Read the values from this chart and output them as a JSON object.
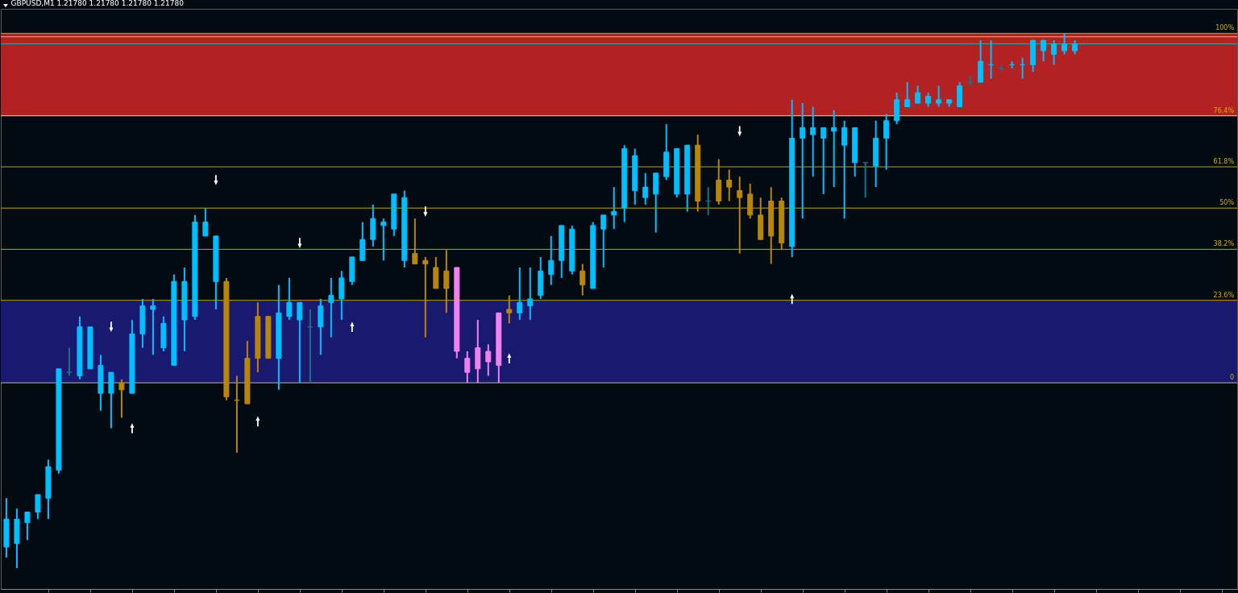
{
  "chart_data": {
    "type": "candlestick",
    "title": "GBPUSD,M1  1.21780 1.21780 1.21780 1.21780",
    "categories": [
      null,
      null,
      null,
      null,
      null,
      null,
      null,
      null,
      null,
      null,
      null,
      null,
      null,
      null,
      null,
      null,
      null,
      null,
      null,
      null,
      null,
      null,
      null,
      null,
      null,
      null,
      null,
      null,
      null,
      null,
      null,
      null,
      null,
      null,
      null,
      null,
      null,
      null,
      null,
      null,
      null,
      null,
      null,
      null,
      null,
      null,
      null,
      null,
      null,
      null,
      null,
      null,
      null,
      null,
      null,
      null,
      null,
      null,
      null,
      null,
      null,
      null,
      null,
      null,
      null,
      null,
      null,
      null,
      null,
      null,
      null,
      null,
      null,
      null,
      null,
      null,
      null,
      null,
      null,
      null,
      null,
      null,
      null,
      null,
      null,
      null,
      null,
      null,
      null,
      null,
      null,
      null,
      null,
      null,
      null,
      null,
      null,
      null,
      null,
      null,
      null,
      null,
      null
    ],
    "ohlc": [
      [
        -47,
        -33,
        -50,
        -39
      ],
      [
        -46,
        -36,
        -53,
        -39
      ],
      [
        -40,
        -37,
        -45,
        -37
      ],
      [
        -37,
        -32,
        -39,
        -32
      ],
      [
        -33,
        -22,
        -39,
        -24
      ],
      [
        -25,
        4,
        -26,
        4
      ],
      [
        3,
        10,
        2,
        3
      ],
      [
        2,
        19,
        1,
        16
      ],
      [
        4,
        16,
        4,
        16
      ],
      [
        -3,
        8,
        -8,
        5
      ],
      [
        -3,
        3,
        -13,
        3
      ],
      [
        0,
        1,
        -10,
        -2
      ],
      [
        -3,
        18,
        -3,
        14
      ],
      [
        14,
        24,
        10,
        22
      ],
      [
        21,
        24,
        8,
        22
      ],
      [
        10,
        19,
        9,
        17
      ],
      [
        5,
        31,
        5,
        29
      ],
      [
        18,
        33,
        9,
        29
      ],
      [
        19,
        48,
        18,
        46
      ],
      [
        42,
        50,
        42,
        46
      ],
      [
        29,
        42,
        21,
        42
      ],
      [
        29,
        30,
        -5,
        -4
      ],
      [
        -5,
        2,
        -20,
        -5
      ],
      [
        7,
        12,
        -6,
        -6
      ],
      [
        19,
        23,
        3,
        7
      ],
      [
        19,
        19,
        7,
        7
      ],
      [
        7,
        28,
        -2,
        20
      ],
      [
        19,
        30,
        18,
        23
      ],
      [
        18,
        23,
        0,
        23
      ],
      [
        16,
        21,
        0,
        16
      ],
      [
        16,
        24,
        8,
        22
      ],
      [
        23,
        30,
        13,
        25
      ],
      [
        24,
        32,
        18,
        30
      ],
      [
        29,
        36,
        28,
        36
      ],
      [
        35,
        46,
        35,
        41
      ],
      [
        41,
        51,
        39,
        47
      ],
      [
        45,
        47,
        35,
        46
      ],
      [
        44,
        54,
        42,
        54
      ],
      [
        35,
        55,
        33,
        53
      ],
      [
        37,
        47,
        34,
        34
      ],
      [
        35,
        36,
        13,
        34
      ],
      [
        33,
        36,
        27,
        27
      ],
      [
        32,
        38,
        20,
        27
      ],
      [
        33,
        33,
        7,
        9
      ],
      [
        7,
        9,
        0,
        3
      ],
      [
        10,
        18,
        0,
        4
      ],
      [
        9,
        11,
        2,
        6
      ],
      [
        20,
        20,
        0,
        5
      ],
      [
        21,
        25,
        17,
        20
      ],
      [
        20,
        33,
        18,
        23
      ],
      [
        22,
        33,
        18,
        24
      ],
      [
        25,
        36,
        24,
        32
      ],
      [
        31,
        42,
        28,
        35
      ],
      [
        35,
        45,
        30,
        45
      ],
      [
        32,
        45,
        31,
        44
      ],
      [
        32,
        34,
        25,
        28
      ],
      [
        27,
        46,
        27,
        45
      ],
      [
        44,
        48,
        33,
        48
      ],
      [
        48,
        56,
        44,
        49
      ],
      [
        50,
        68,
        46,
        67
      ],
      [
        55,
        67,
        51,
        65
      ],
      [
        53,
        60,
        51,
        56
      ],
      [
        54,
        60,
        43,
        60
      ],
      [
        59,
        74,
        58,
        66
      ],
      [
        54,
        67,
        53,
        67
      ],
      [
        54,
        68,
        49,
        68
      ],
      [
        68,
        71,
        49,
        52
      ],
      [
        52,
        56,
        48,
        52
      ],
      [
        58,
        64,
        51,
        52
      ],
      [
        58,
        61,
        52,
        56
      ],
      [
        55,
        59,
        37,
        53
      ],
      [
        54,
        57,
        47,
        48
      ],
      [
        48,
        53,
        41,
        41
      ],
      [
        52,
        56,
        34,
        42
      ],
      [
        52,
        53,
        38,
        40
      ],
      [
        39,
        81,
        36,
        70
      ],
      [
        70,
        80,
        47,
        73
      ],
      [
        71,
        79,
        59,
        73
      ],
      [
        70,
        73,
        54,
        73
      ],
      [
        72,
        78,
        56,
        73
      ],
      [
        68,
        75,
        47,
        73
      ],
      [
        63,
        73,
        59,
        73
      ],
      [
        63,
        63,
        53,
        63
      ],
      [
        62,
        75,
        56,
        70
      ],
      [
        70,
        77,
        61,
        75
      ],
      [
        75,
        83,
        74,
        81
      ],
      [
        79,
        86,
        79,
        81
      ],
      [
        80,
        85,
        80,
        83
      ],
      [
        80,
        83,
        79,
        82
      ],
      [
        80,
        85,
        79,
        81
      ],
      [
        80,
        81,
        79,
        81
      ],
      [
        79,
        86,
        79,
        85
      ],
      [
        86,
        88,
        85,
        86
      ],
      [
        86,
        98,
        86,
        92
      ],
      [
        91,
        98,
        87,
        91
      ],
      [
        90,
        91,
        89,
        90
      ],
      [
        91,
        92,
        90,
        91
      ],
      [
        91,
        93,
        87,
        91
      ],
      [
        91,
        98,
        89,
        98
      ],
      [
        95,
        98,
        92,
        98
      ],
      [
        94,
        98,
        91,
        97
      ],
      [
        95,
        100,
        94,
        97
      ],
      [
        95,
        98,
        94,
        97
      ]
    ],
    "colors": [
      "#00bfff",
      "#00bfff",
      "#00bfff",
      "#00bfff",
      "#00bfff",
      "#00bfff",
      "#1e7088",
      "#00bfff",
      "#00bfff",
      "#00bfff",
      "#00bfff",
      "#b8860b",
      "#00bfff",
      "#00bfff",
      "#00bfff",
      "#00bfff",
      "#00bfff",
      "#00bfff",
      "#00bfff",
      "#00bfff",
      "#00bfff",
      "#b8860b",
      "#b8860b",
      "#b8860b",
      "#b8860b",
      "#b8860b",
      "#00bfff",
      "#00bfff",
      "#00bfff",
      "#1e7088",
      "#00bfff",
      "#00bfff",
      "#00bfff",
      "#00bfff",
      "#00bfff",
      "#00bfff",
      "#00bfff",
      "#00bfff",
      "#00bfff",
      "#b8860b",
      "#b8860b",
      "#b8860b",
      "#b8860b",
      "#ee82ee",
      "#ee82ee",
      "#ee82ee",
      "#ee82ee",
      "#ee82ee",
      "#b8860b",
      "#00bfff",
      "#00bfff",
      "#00bfff",
      "#00bfff",
      "#00bfff",
      "#00bfff",
      "#b8860b",
      "#00bfff",
      "#00bfff",
      "#00bfff",
      "#00bfff",
      "#00bfff",
      "#00bfff",
      "#00bfff",
      "#00bfff",
      "#00bfff",
      "#00bfff",
      "#b8860b",
      "#1e7088",
      "#b8860b",
      "#b8860b",
      "#b8860b",
      "#b8860b",
      "#b8860b",
      "#b8860b",
      "#b8860b",
      "#00bfff",
      "#00bfff",
      "#00bfff",
      "#00bfff",
      "#00bfff",
      "#00bfff",
      "#00bfff",
      "#1e7088",
      "#00bfff",
      "#00bfff",
      "#00bfff",
      "#00bfff",
      "#00bfff",
      "#00bfff",
      "#00bfff",
      "#00bfff",
      "#00bfff",
      "#1e7088",
      "#00bfff",
      "#00bfff",
      "#1e7088",
      "#00bfff",
      "#00bfff",
      "#00bfff",
      "#00bfff",
      "#00bfff",
      "#00bfff",
      "#00bfff"
    ],
    "series": [
      {
        "type": "scatter",
        "marker": "triangle",
        "color": "#ffffff",
        "values": [
          null,
          null,
          null,
          null,
          null,
          null,
          null,
          null,
          null,
          null,
          null,
          null,
          -13,
          null,
          null,
          null,
          null,
          null,
          null,
          null,
          null,
          null,
          null,
          null,
          -11,
          null,
          null,
          null,
          null,
          null,
          null,
          null,
          null,
          16,
          null,
          null,
          null,
          null,
          null,
          null,
          null,
          null,
          null,
          null,
          null,
          null,
          null,
          null,
          7,
          null,
          null,
          null,
          null,
          null,
          null,
          null,
          null,
          null,
          null,
          null,
          null,
          null,
          null,
          null,
          null,
          null,
          null,
          null,
          null,
          null,
          null,
          null,
          null,
          null,
          null,
          24,
          null,
          null,
          null,
          null,
          null,
          null,
          null,
          null,
          null,
          null,
          null,
          null,
          null,
          null,
          null,
          null,
          null,
          null,
          null,
          null,
          null,
          null,
          null,
          null,
          null,
          null,
          null
        ]
      },
      {
        "type": "scatter",
        "marker": "triangle-down",
        "color": "#ffffff",
        "values": [
          null,
          null,
          null,
          null,
          null,
          null,
          null,
          null,
          null,
          null,
          16,
          null,
          null,
          null,
          null,
          null,
          null,
          null,
          null,
          null,
          58,
          null,
          null,
          null,
          null,
          null,
          null,
          null,
          40,
          null,
          null,
          null,
          null,
          null,
          null,
          null,
          null,
          null,
          null,
          null,
          49,
          null,
          null,
          null,
          null,
          null,
          null,
          null,
          null,
          null,
          null,
          null,
          null,
          null,
          null,
          null,
          null,
          null,
          null,
          null,
          null,
          null,
          null,
          null,
          null,
          null,
          null,
          null,
          null,
          null,
          72,
          null,
          null,
          null,
          null,
          null,
          null,
          null,
          null,
          null,
          null,
          null,
          null,
          null,
          null,
          null,
          null,
          null,
          null,
          null,
          null,
          null,
          null,
          null,
          null,
          null,
          null,
          null,
          null,
          null,
          null,
          null,
          null
        ]
      }
    ],
    "bands": [
      {
        "axis": "y",
        "from": 76.4,
        "to": 100,
        "color": "#b22222"
      },
      {
        "axis": "y",
        "from": 0,
        "to": 23.6,
        "color": "#191970"
      }
    ],
    "ref_lines": [
      {
        "axis": "y",
        "value": 100,
        "label": "100%",
        "color": "#c8a000"
      },
      {
        "axis": "y",
        "value": 76.4,
        "label": "76.4%",
        "color": "#e8d8a0"
      },
      {
        "axis": "y",
        "value": 61.8,
        "label": "61.8%",
        "color": "#c8a000"
      },
      {
        "axis": "y",
        "value": 50,
        "label": "50%",
        "color": "#c8a000"
      },
      {
        "axis": "y",
        "value": 38.2,
        "label": "38.2%",
        "color": "#c8a000"
      },
      {
        "axis": "y",
        "value": 23.6,
        "label": "23.6%",
        "color": "#c8a000"
      },
      {
        "axis": "y",
        "value": 0,
        "label": "0",
        "color": "#c8b890"
      },
      {
        "axis": "y",
        "value": 99,
        "color": "#c0c0c0"
      },
      {
        "axis": "y",
        "value": 97,
        "color": "#20b2aa"
      }
    ],
    "ylim": [
      -59,
      107
    ],
    "tick_labels": false
  }
}
